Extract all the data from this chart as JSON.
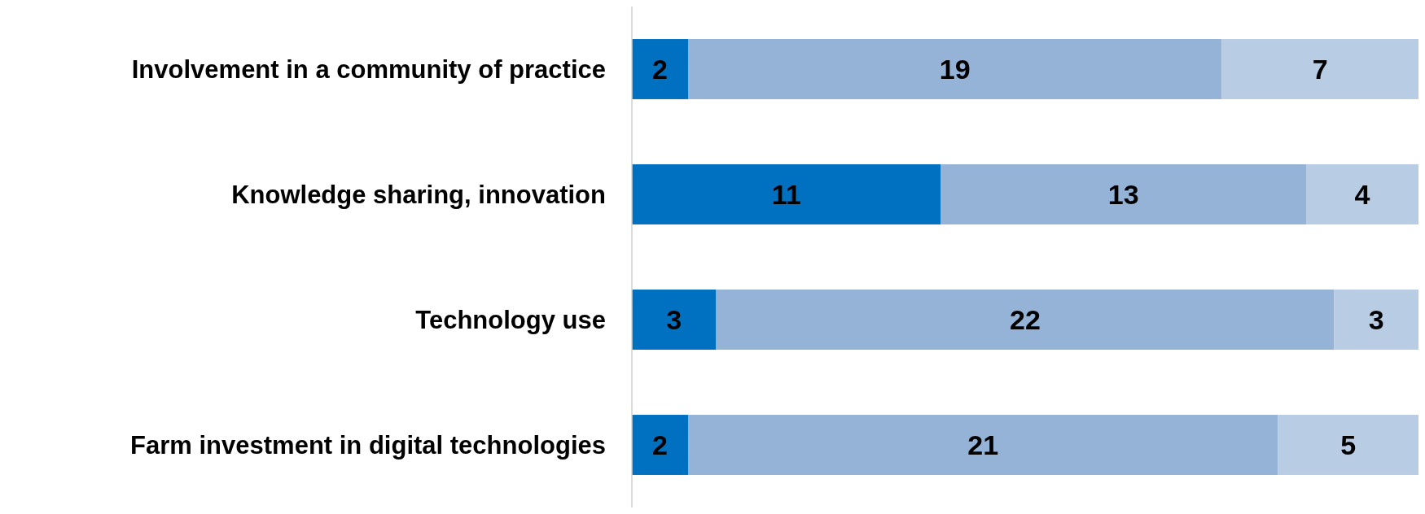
{
  "chart_data": {
    "type": "bar",
    "orientation": "horizontal",
    "stacked": true,
    "data_labels": true,
    "tick_labels": "y",
    "xlim": [
      0,
      28
    ],
    "categories": [
      "Involvement in a community of practice",
      "Knowledge sharing, innovation",
      "Technology use",
      "Farm investment in digital technologies"
    ],
    "series": [
      {
        "color": "#0070c0",
        "values": [
          2,
          11,
          3,
          2
        ]
      },
      {
        "color": "#95b3d7",
        "values": [
          19,
          13,
          22,
          21
        ]
      },
      {
        "color": "#b8cce4",
        "values": [
          7,
          4,
          3,
          5
        ]
      }
    ]
  }
}
